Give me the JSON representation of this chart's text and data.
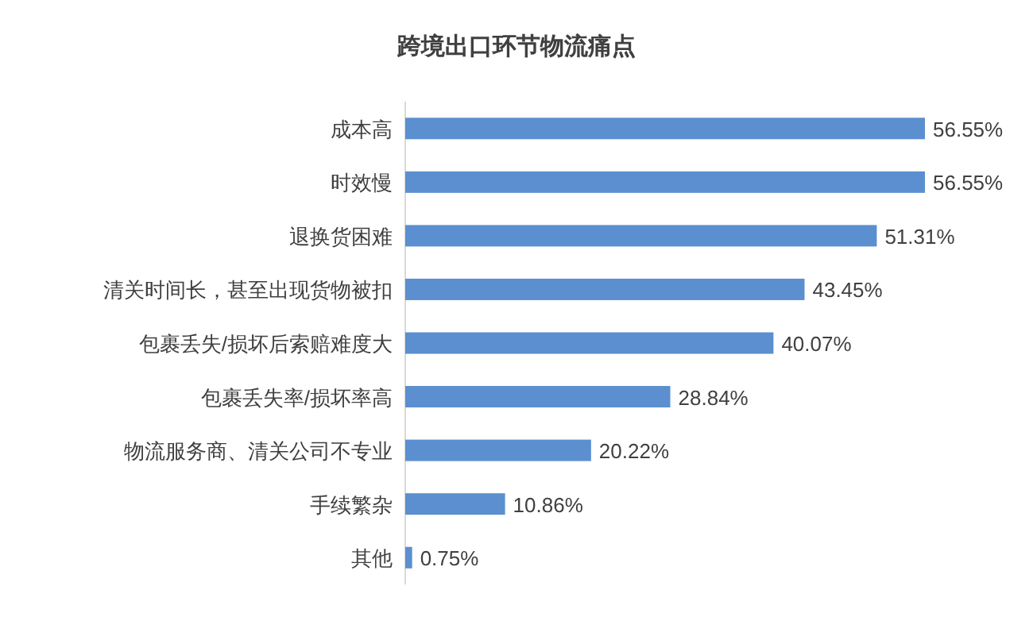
{
  "chart_data": {
    "type": "bar",
    "orientation": "horizontal",
    "title": "跨境出口环节物流痛点",
    "categories": [
      "成本高",
      "时效慢",
      "退换货困难",
      "清关时间长，甚至出现货物被扣",
      "包裹丢失/损坏后索赔难度大",
      "包裹丢失率/损坏率高",
      "物流服务商、清关公司不专业",
      "手续繁杂",
      "其他"
    ],
    "values": [
      56.55,
      56.55,
      51.31,
      43.45,
      40.07,
      28.84,
      20.22,
      10.86,
      0.75
    ],
    "value_labels": [
      "56.55%",
      "56.55%",
      "51.31%",
      "43.45%",
      "40.07%",
      "28.84%",
      "20.22%",
      "10.86%",
      "0.75%"
    ],
    "color": "#5b8fcf"
  }
}
